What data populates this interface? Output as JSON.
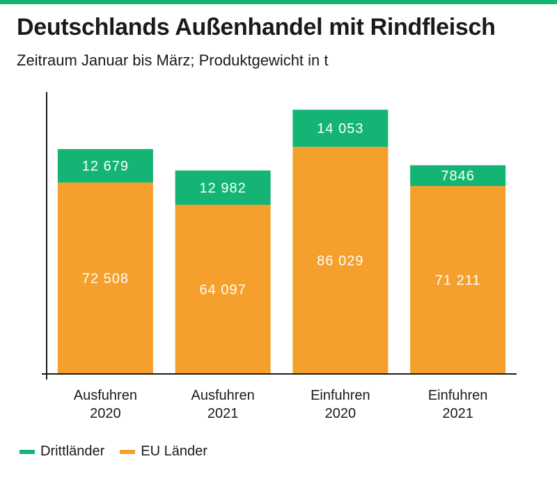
{
  "title": "Deutschlands Außenhandel mit Rindfleisch",
  "subtitle": "Zeitraum Januar bis März; Produktgewicht in t",
  "colors": {
    "accent": "#14b574",
    "drittlaender": "#14b574",
    "eu": "#f5a02c",
    "axis": "#1a1a1a",
    "label_text": "#ffffff"
  },
  "chart_data": {
    "type": "bar",
    "stacked": true,
    "categories": [
      [
        "Ausfuhren",
        "2020"
      ],
      [
        "Ausfuhren",
        "2021"
      ],
      [
        "Einfuhren",
        "2020"
      ],
      [
        "Einfuhren",
        "2021"
      ]
    ],
    "series": [
      {
        "name": "EU Länder",
        "values": [
          72508,
          64097,
          86029,
          71211
        ],
        "labels": [
          "72 508",
          "64 097",
          "86 029",
          "71 211"
        ]
      },
      {
        "name": "Drittländer",
        "values": [
          12679,
          12982,
          14053,
          7846
        ],
        "labels": [
          "12 679",
          "12 982",
          "14 053",
          "7846"
        ]
      }
    ],
    "title": "Deutschlands Außenhandel mit Rindfleisch",
    "subtitle": "Zeitraum Januar bis März; Produktgewicht in t",
    "ylim": [
      0,
      110000
    ],
    "grid": false,
    "legend_placement": "bottom-left"
  },
  "legend": {
    "items": [
      {
        "label": "Drittländer",
        "color": "#14b574"
      },
      {
        "label": "EU Länder",
        "color": "#f5a02c"
      }
    ]
  }
}
